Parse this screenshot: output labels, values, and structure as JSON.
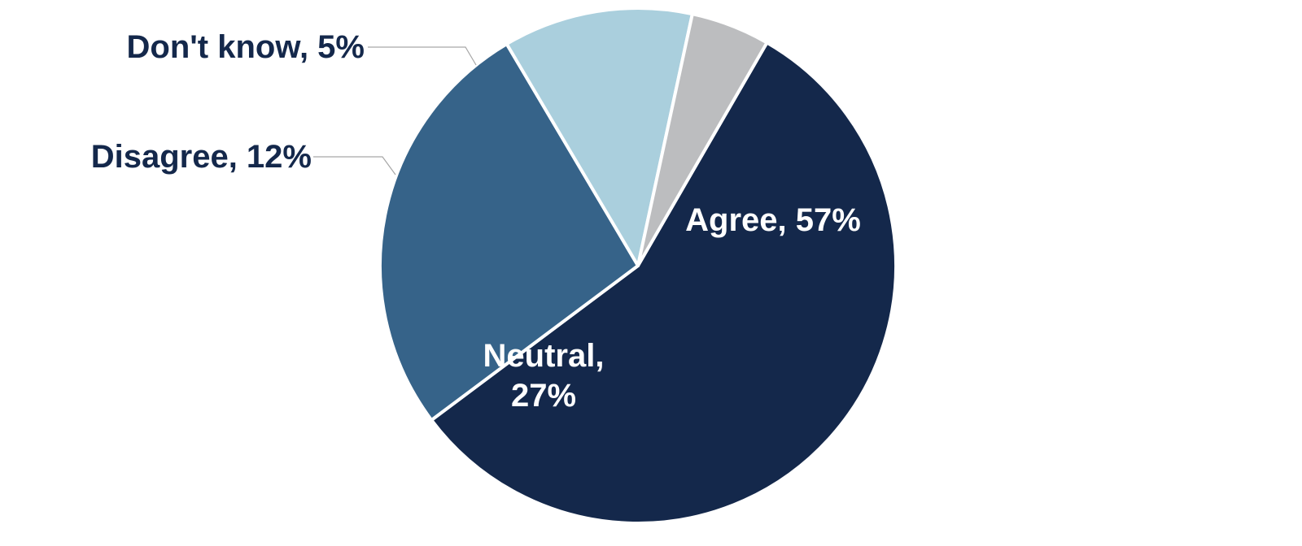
{
  "chart_data": {
    "type": "pie",
    "title": "",
    "start_angle_deg": 30,
    "direction": "clockwise",
    "slices": [
      {
        "label": "Agree",
        "value": 57,
        "display": "Agree, 57%",
        "color": "#14284b",
        "label_color": "#ffffff",
        "label_placement": "inside"
      },
      {
        "label": "Neutral",
        "value": 27,
        "display_lines": [
          "Neutral,",
          "27%"
        ],
        "color": "#366389",
        "label_color": "#ffffff",
        "label_placement": "inside"
      },
      {
        "label": "Disagree",
        "value": 12,
        "display": "Disagree, 12%",
        "color": "#aacfdd",
        "label_color": "#14284b",
        "label_placement": "outside"
      },
      {
        "label": "Don't know",
        "value": 5,
        "display": "Don't know, 5%",
        "color": "#bcbdbf",
        "label_color": "#14284b",
        "label_placement": "outside"
      }
    ],
    "separator_color": "#ffffff",
    "leader_line_color": "#a6a6a6",
    "legend": "none"
  }
}
